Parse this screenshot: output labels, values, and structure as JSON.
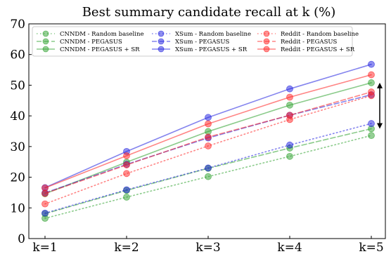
{
  "chart_data": {
    "type": "line",
    "title": "Best summary candidate recall at k (%)",
    "xlabel": "",
    "ylabel": "",
    "categories": [
      "k=1",
      "k=2",
      "k=3",
      "k=4",
      "k=5"
    ],
    "ylim": [
      0,
      70
    ],
    "yticks": [
      0,
      10,
      20,
      30,
      40,
      50,
      60,
      70
    ],
    "grid": false,
    "legend_position": "top",
    "series": [
      {
        "name": "CNNDM - Random baseline",
        "color": "#2ca02c",
        "style": "dotted",
        "values": [
          6.6,
          13.5,
          20.2,
          26.8,
          33.6
        ]
      },
      {
        "name": "CNNDM - PEGASUS",
        "color": "#2ca02c",
        "style": "dashed",
        "values": [
          8.1,
          15.7,
          22.9,
          29.5,
          35.8
        ]
      },
      {
        "name": "CNNDM - PEGASUS + SR",
        "color": "#2ca02c",
        "style": "solid",
        "values": [
          14.6,
          24.9,
          34.9,
          43.5,
          50.8
        ]
      },
      {
        "name": "XSum - Random baseline",
        "color": "#1f1fe0",
        "style": "dotted",
        "values": [
          8.3,
          15.9,
          23.0,
          30.5,
          37.5
        ]
      },
      {
        "name": "XSum - PEGASUS",
        "color": "#1f1fe0",
        "style": "dashed",
        "values": [
          14.9,
          24.2,
          32.8,
          40.2,
          46.9
        ]
      },
      {
        "name": "XSum - PEGASUS + SR",
        "color": "#1f1fe0",
        "style": "solid",
        "values": [
          16.6,
          28.4,
          39.5,
          48.8,
          56.8
        ]
      },
      {
        "name": "Reddit - Random baseline",
        "color": "#ff2020",
        "style": "dotted",
        "values": [
          11.3,
          21.2,
          30.2,
          38.8,
          46.6
        ]
      },
      {
        "name": "Reddit - PEGASUS",
        "color": "#ff2020",
        "style": "dashed",
        "values": [
          14.7,
          24.0,
          33.1,
          40.2,
          47.8
        ]
      },
      {
        "name": "Reddit - PEGASUS + SR",
        "color": "#ff2020",
        "style": "solid",
        "values": [
          16.5,
          27.0,
          37.4,
          46.1,
          53.4
        ]
      }
    ],
    "annotations": [
      {
        "type": "double-arrow",
        "at": "k=5",
        "from": 35.8,
        "to": 50.8
      }
    ]
  }
}
